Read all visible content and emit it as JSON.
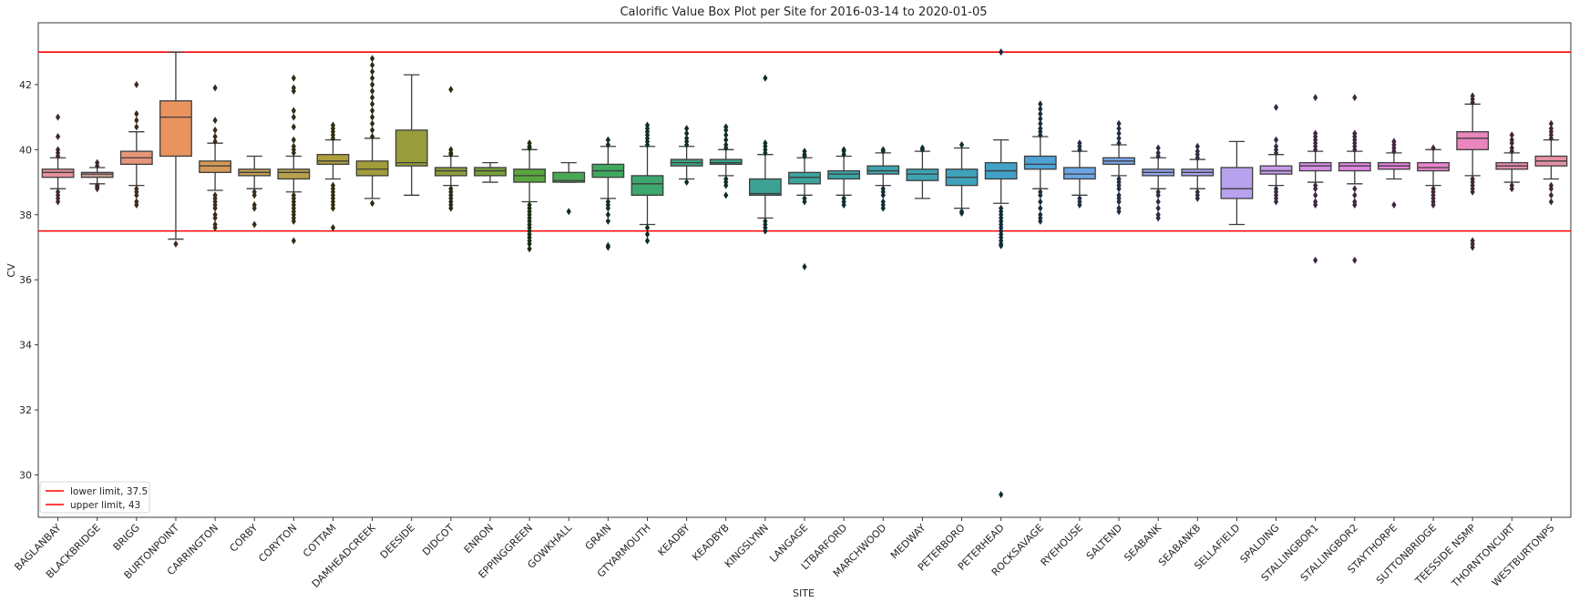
{
  "chart_data": {
    "type": "box",
    "title": "Calorific Value Box Plot per Site for 2016-03-14 to 2020-01-05",
    "xlabel": "SITE",
    "ylabel": "CV",
    "ylim": [
      28.7,
      43.9
    ],
    "yticks": [
      30,
      32,
      34,
      36,
      38,
      40,
      42
    ],
    "grid": false,
    "legend_position": "bottom-left",
    "reference_lines": [
      {
        "label": "lower limit, 37.5",
        "value": 37.5,
        "color": "#ff0000"
      },
      {
        "label": "upper limit, 43",
        "value": 43,
        "color": "#ff0000"
      }
    ],
    "categories": [
      "BAGLANBAY",
      "BLACKBRIDGE",
      "BRIGG",
      "BURTONPOINT",
      "CARRINGTON",
      "CORBY",
      "CORYTON",
      "COTTAM",
      "DAMHEADCREEK",
      "DEESIDE",
      "DIDCOT",
      "ENRON",
      "EPPINGGREEN",
      "GOWKHALL",
      "GRAIN",
      "GTYARMOUTH",
      "KEADBY",
      "KEADBYB",
      "KINGSLYNN",
      "LANGAGE",
      "LTBARFORD",
      "MARCHWOOD",
      "MEDWAY",
      "PETERBORO",
      "PETERHEAD",
      "ROCKSAVAGE",
      "RYEHOUSE",
      "SALTEND",
      "SEABANK",
      "SEABANKB",
      "SELLAFIELD",
      "SPALDING",
      "STALLINGBOR1",
      "STALLINGBOR2",
      "STAYTHORPE",
      "SUTTONBRIDGE",
      "TEESSIDE NSMP",
      "THORNTONCURT",
      "WESTBURTONPS"
    ],
    "colors": [
      "#e8929b",
      "#c99a92",
      "#e6957a",
      "#e9945e",
      "#d59a58",
      "#c49f55",
      "#b9a14f",
      "#ae9f3f",
      "#a29d3b",
      "#989d3b",
      "#8d9e3b",
      "#78a13b",
      "#5aa640",
      "#4aa755",
      "#3fa95f",
      "#3ea66f",
      "#3ea37f",
      "#3ca38a",
      "#3ca295",
      "#3ca39d",
      "#3ca3a4",
      "#3da3ac",
      "#3ea3b3",
      "#3fa2bb",
      "#42a1c6",
      "#4ea3d6",
      "#6ba6e3",
      "#7aa6ea",
      "#91a6eb",
      "#a4a4ec",
      "#b7a2ee",
      "#c79bec",
      "#d68fe6",
      "#e186e2",
      "#e782d9",
      "#e984cb",
      "#e986bd",
      "#e68cb1",
      "#e691a7"
    ],
    "boxes": [
      {
        "whislo": 38.8,
        "q1": 39.15,
        "med": 39.3,
        "q3": 39.4,
        "whishi": 39.75,
        "outliers": [
          38.4,
          38.5,
          38.6,
          38.7,
          39.8,
          39.9,
          40.0,
          40.4,
          41.0
        ]
      },
      {
        "whislo": 38.95,
        "q1": 39.15,
        "med": 39.25,
        "q3": 39.3,
        "whishi": 39.45,
        "outliers": [
          38.8,
          38.85,
          38.9,
          39.5,
          39.6
        ]
      },
      {
        "whislo": 38.9,
        "q1": 39.55,
        "med": 39.75,
        "q3": 39.95,
        "whishi": 40.55,
        "outliers": [
          38.3,
          38.4,
          38.6,
          38.7,
          38.8,
          40.7,
          40.9,
          41.1,
          42.0
        ]
      },
      {
        "whislo": 37.25,
        "q1": 39.8,
        "med": 41.0,
        "q3": 41.5,
        "whishi": 43.0,
        "outliers": [
          37.1
        ]
      },
      {
        "whislo": 38.75,
        "q1": 39.3,
        "med": 39.5,
        "q3": 39.65,
        "whishi": 40.2,
        "outliers": [
          37.6,
          37.7,
          37.9,
          38.0,
          38.2,
          38.3,
          38.4,
          38.5,
          38.6,
          40.25,
          40.4,
          40.6,
          40.9,
          41.9
        ]
      },
      {
        "whislo": 38.8,
        "q1": 39.2,
        "med": 39.3,
        "q3": 39.4,
        "whishi": 39.8,
        "outliers": [
          37.7,
          38.2,
          38.3,
          38.6,
          38.7
        ]
      },
      {
        "whislo": 38.7,
        "q1": 39.1,
        "med": 39.3,
        "q3": 39.4,
        "whishi": 39.8,
        "outliers": [
          37.2,
          37.8,
          37.9,
          38.0,
          38.1,
          38.2,
          38.3,
          38.4,
          38.5,
          38.6,
          39.9,
          40.0,
          40.1,
          40.3,
          40.7,
          41.0,
          41.2,
          41.8,
          41.9,
          42.2
        ]
      },
      {
        "whislo": 39.1,
        "q1": 39.55,
        "med": 39.65,
        "q3": 39.85,
        "whishi": 40.3,
        "outliers": [
          37.6,
          38.2,
          38.3,
          38.4,
          38.5,
          38.6,
          38.7,
          38.8,
          38.9,
          40.35,
          40.45,
          40.55,
          40.65,
          40.75
        ]
      },
      {
        "whislo": 38.5,
        "q1": 39.2,
        "med": 39.4,
        "q3": 39.65,
        "whishi": 40.35,
        "outliers": [
          38.35,
          40.4,
          40.6,
          40.8,
          41.0,
          41.2,
          41.4,
          41.6,
          41.8,
          42.0,
          42.2,
          42.4,
          42.6,
          42.8
        ]
      },
      {
        "whislo": 38.6,
        "q1": 39.5,
        "med": 39.6,
        "q3": 40.6,
        "whishi": 42.3,
        "outliers": []
      },
      {
        "whislo": 38.9,
        "q1": 39.2,
        "med": 39.35,
        "q3": 39.45,
        "whishi": 39.8,
        "outliers": [
          38.2,
          38.3,
          38.4,
          38.5,
          38.6,
          38.7,
          38.8,
          39.85,
          39.9,
          40.0,
          41.85
        ]
      },
      {
        "whislo": 39.0,
        "q1": 39.2,
        "med": 39.35,
        "q3": 39.45,
        "whishi": 39.6,
        "outliers": []
      },
      {
        "whislo": 38.4,
        "q1": 39.0,
        "med": 39.2,
        "q3": 39.4,
        "whishi": 40.0,
        "outliers": [
          36.95,
          37.1,
          37.2,
          37.3,
          37.4,
          37.5,
          37.6,
          37.7,
          37.8,
          37.9,
          38.0,
          38.1,
          38.2,
          38.3,
          40.05,
          40.1,
          40.2
        ]
      },
      {
        "whislo": 39.0,
        "q1": 39.0,
        "med": 39.05,
        "q3": 39.3,
        "whishi": 39.6,
        "outliers": [
          38.1
        ]
      },
      {
        "whislo": 38.5,
        "q1": 39.15,
        "med": 39.35,
        "q3": 39.55,
        "whishi": 40.1,
        "outliers": [
          37.0,
          37.05,
          37.8,
          38.0,
          38.2,
          38.3,
          38.4,
          40.15,
          40.3
        ]
      },
      {
        "whislo": 37.7,
        "q1": 38.6,
        "med": 38.95,
        "q3": 39.2,
        "whishi": 40.1,
        "outliers": [
          37.2,
          37.4,
          37.6,
          40.15,
          40.25,
          40.35,
          40.45,
          40.55,
          40.65,
          40.75
        ]
      },
      {
        "whislo": 39.1,
        "q1": 39.5,
        "med": 39.6,
        "q3": 39.7,
        "whishi": 40.1,
        "outliers": [
          39.0,
          40.15,
          40.25,
          40.35,
          40.5,
          40.65
        ]
      },
      {
        "whislo": 39.2,
        "q1": 39.55,
        "med": 39.6,
        "q3": 39.7,
        "whishi": 40.0,
        "outliers": [
          38.6,
          38.9,
          39.0,
          39.1,
          40.05,
          40.15,
          40.3,
          40.45,
          40.6,
          40.7
        ]
      },
      {
        "whislo": 37.9,
        "q1": 38.6,
        "med": 38.65,
        "q3": 39.1,
        "whishi": 39.85,
        "outliers": [
          37.5,
          37.6,
          37.7,
          37.8,
          39.9,
          40.0,
          40.1,
          40.2,
          42.2
        ]
      },
      {
        "whislo": 38.6,
        "q1": 38.95,
        "med": 39.15,
        "q3": 39.3,
        "whishi": 39.75,
        "outliers": [
          36.4,
          38.4,
          38.5,
          39.8,
          39.85,
          39.95
        ]
      },
      {
        "whislo": 38.6,
        "q1": 39.1,
        "med": 39.25,
        "q3": 39.35,
        "whishi": 39.8,
        "outliers": [
          38.3,
          38.4,
          38.5,
          39.85,
          39.95,
          40.0
        ]
      },
      {
        "whislo": 38.9,
        "q1": 39.25,
        "med": 39.35,
        "q3": 39.5,
        "whishi": 39.9,
        "outliers": [
          38.2,
          38.3,
          38.4,
          38.6,
          38.7,
          38.8,
          39.95,
          40.0
        ]
      },
      {
        "whislo": 38.5,
        "q1": 39.05,
        "med": 39.25,
        "q3": 39.4,
        "whishi": 39.95,
        "outliers": [
          40.0,
          40.05
        ]
      },
      {
        "whislo": 38.2,
        "q1": 38.9,
        "med": 39.15,
        "q3": 39.4,
        "whishi": 40.05,
        "outliers": [
          38.05,
          38.1,
          40.15
        ]
      },
      {
        "whislo": 38.35,
        "q1": 39.1,
        "med": 39.35,
        "q3": 39.6,
        "whishi": 40.3,
        "outliers": [
          29.4,
          37.05,
          37.1,
          37.2,
          37.3,
          37.4,
          37.5,
          37.6,
          37.7,
          37.8,
          37.9,
          38.0,
          38.1,
          38.2,
          43.0
        ]
      },
      {
        "whislo": 38.8,
        "q1": 39.4,
        "med": 39.55,
        "q3": 39.8,
        "whishi": 40.4,
        "outliers": [
          37.8,
          37.9,
          38.0,
          38.2,
          38.4,
          38.6,
          38.7,
          40.45,
          40.55,
          40.65,
          40.8,
          40.95,
          41.1,
          41.25,
          41.4
        ]
      },
      {
        "whislo": 38.6,
        "q1": 39.1,
        "med": 39.25,
        "q3": 39.45,
        "whishi": 39.95,
        "outliers": [
          38.3,
          38.4,
          38.5,
          40.0,
          40.1,
          40.2
        ]
      },
      {
        "whislo": 39.2,
        "q1": 39.55,
        "med": 39.65,
        "q3": 39.75,
        "whishi": 40.15,
        "outliers": [
          38.1,
          38.2,
          38.4,
          38.5,
          38.6,
          38.8,
          38.9,
          39.0,
          39.1,
          40.2,
          40.35,
          40.5,
          40.65,
          40.8
        ]
      },
      {
        "whislo": 38.8,
        "q1": 39.2,
        "med": 39.3,
        "q3": 39.4,
        "whishi": 39.75,
        "outliers": [
          37.9,
          38.0,
          38.2,
          38.4,
          38.6,
          38.7,
          39.8,
          39.9,
          40.05
        ]
      },
      {
        "whislo": 38.8,
        "q1": 39.2,
        "med": 39.3,
        "q3": 39.4,
        "whishi": 39.7,
        "outliers": [
          38.5,
          38.6,
          38.7,
          39.75,
          39.85,
          39.95,
          40.1
        ]
      },
      {
        "whislo": 37.7,
        "q1": 38.5,
        "med": 38.8,
        "q3": 39.45,
        "whishi": 40.25,
        "outliers": []
      },
      {
        "whislo": 38.9,
        "q1": 39.25,
        "med": 39.35,
        "q3": 39.5,
        "whishi": 39.85,
        "outliers": [
          38.4,
          38.5,
          38.6,
          38.7,
          38.8,
          39.9,
          40.0,
          40.1,
          40.3,
          41.3
        ]
      },
      {
        "whislo": 39.0,
        "q1": 39.35,
        "med": 39.5,
        "q3": 39.6,
        "whishi": 39.95,
        "outliers": [
          36.6,
          38.3,
          38.4,
          38.6,
          38.8,
          38.9,
          40.0,
          40.1,
          40.2,
          40.3,
          40.4,
          40.5,
          41.6
        ]
      },
      {
        "whislo": 38.95,
        "q1": 39.35,
        "med": 39.5,
        "q3": 39.6,
        "whishi": 39.95,
        "outliers": [
          36.6,
          38.3,
          38.4,
          38.6,
          38.8,
          40.0,
          40.1,
          40.2,
          40.3,
          40.4,
          40.5,
          41.6
        ]
      },
      {
        "whislo": 39.1,
        "q1": 39.4,
        "med": 39.5,
        "q3": 39.6,
        "whishi": 39.9,
        "outliers": [
          38.3,
          39.95,
          40.05,
          40.15,
          40.25
        ]
      },
      {
        "whislo": 38.9,
        "q1": 39.35,
        "med": 39.45,
        "q3": 39.6,
        "whishi": 40.0,
        "outliers": [
          38.3,
          38.4,
          38.5,
          38.6,
          38.7,
          38.8,
          40.05
        ]
      },
      {
        "whislo": 39.2,
        "q1": 40.0,
        "med": 40.35,
        "q3": 40.55,
        "whishi": 41.4,
        "outliers": [
          37.0,
          37.1,
          37.2,
          38.7,
          38.8,
          38.9,
          39.0,
          39.1,
          41.45,
          41.55,
          41.65
        ]
      },
      {
        "whislo": 39.0,
        "q1": 39.4,
        "med": 39.5,
        "q3": 39.6,
        "whishi": 39.9,
        "outliers": [
          38.8,
          38.9,
          39.95,
          40.05,
          40.2,
          40.3,
          40.45
        ]
      },
      {
        "whislo": 39.1,
        "q1": 39.5,
        "med": 39.65,
        "q3": 39.8,
        "whishi": 40.3,
        "outliers": [
          38.4,
          38.6,
          38.8,
          38.9,
          40.35,
          40.45,
          40.55,
          40.65,
          40.8
        ]
      }
    ]
  }
}
